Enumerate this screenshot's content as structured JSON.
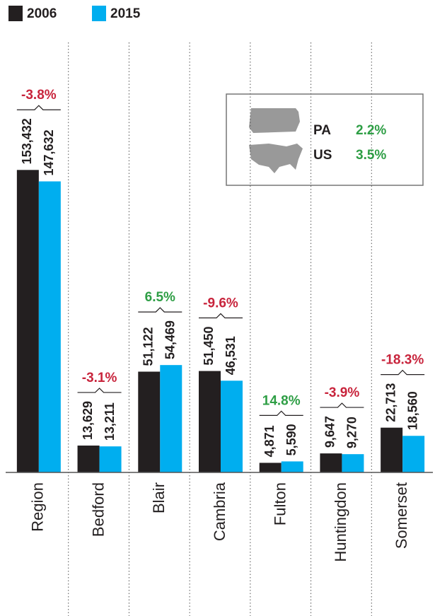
{
  "chart_data": {
    "type": "bar",
    "categories": [
      "Region",
      "Bedford",
      "Blair",
      "Cambria",
      "Fulton",
      "Huntingdon",
      "Somerset"
    ],
    "series": [
      {
        "name": "2006",
        "color": "#231f20",
        "values": [
          153432,
          13629,
          51122,
          51450,
          4871,
          9647,
          22713
        ],
        "value_labels": [
          "153,432",
          "13,629",
          "51,122",
          "51,450",
          "4,871",
          "9,647",
          "22,713"
        ]
      },
      {
        "name": "2015",
        "color": "#00aeef",
        "values": [
          147632,
          13211,
          54469,
          46531,
          5590,
          9270,
          18560
        ],
        "value_labels": [
          "147,632",
          "13,211",
          "54,469",
          "46,531",
          "5,590",
          "9,270",
          "18,560"
        ]
      }
    ],
    "ylim": [
      0,
      160000
    ],
    "change": {
      "values": [
        -3.8,
        -3.1,
        6.5,
        -9.6,
        14.8,
        -3.9,
        -18.3
      ],
      "value_labels": [
        "-3.8%",
        "-3.1%",
        "6.5%",
        "-9.6%",
        "14.8%",
        "-3.9%",
        "-18.3%"
      ],
      "colors": {
        "negative": "#c8243c",
        "positive": "#2e9e45"
      }
    },
    "inset": [
      {
        "name": "PA",
        "value": 2.2,
        "value_label": "2.2%"
      },
      {
        "name": "US",
        "value": 3.5,
        "value_label": "3.5%"
      }
    ]
  }
}
